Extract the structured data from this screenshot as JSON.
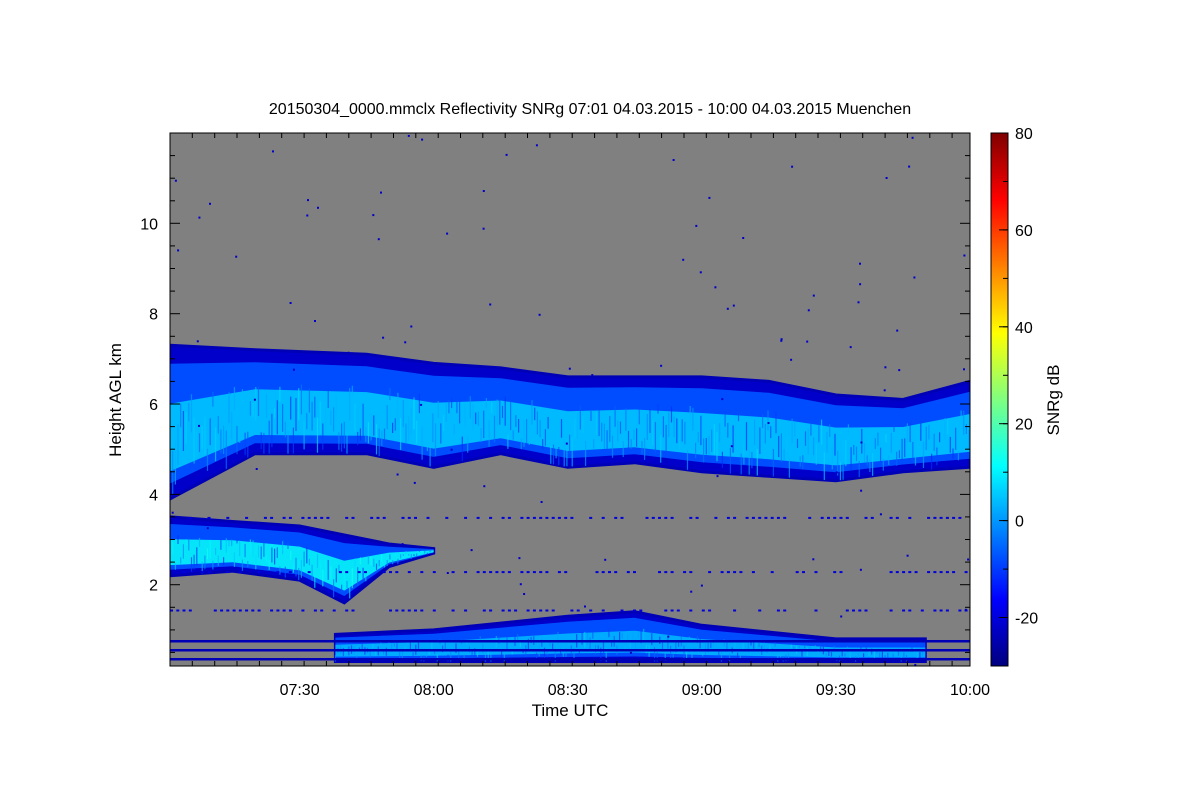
{
  "chart_data": {
    "type": "heatmap",
    "title": "20150304_0000.mmclx Reflectivity SNRg   07:01 04.03.2015 - 10:00 04.03.2015 Muenchen",
    "xlabel": "Time UTC",
    "ylabel": "Height AGL km",
    "xlim": [
      "07:01",
      "10:00"
    ],
    "ylim": [
      0.2,
      12
    ],
    "x_ticks": [
      "07:30",
      "08:00",
      "08:30",
      "09:00",
      "09:30",
      "10:00"
    ],
    "y_ticks": [
      2,
      4,
      6,
      8,
      10
    ],
    "no_signal_color": "#808080",
    "colorbar": {
      "label": "SNRg dB",
      "range": [
        -30,
        80
      ],
      "ticks": [
        -20,
        0,
        20,
        40,
        60,
        80
      ],
      "colormap": "jet"
    },
    "features": [
      {
        "layer": "upper cloud",
        "time": [
          "07:01",
          "07:20",
          "07:45",
          "08:00",
          "08:15",
          "08:30",
          "08:45",
          "09:00",
          "09:15",
          "09:30",
          "09:45",
          "10:00"
        ],
        "base_km": [
          3.9,
          4.9,
          4.9,
          4.6,
          4.9,
          4.6,
          4.7,
          4.5,
          4.4,
          4.3,
          4.5,
          4.6
        ],
        "top_km": [
          7.3,
          7.2,
          7.1,
          6.9,
          6.8,
          6.6,
          6.6,
          6.6,
          6.5,
          6.2,
          6.1,
          6.5
        ],
        "max_snr_db": 12
      },
      {
        "layer": "mid cloud",
        "time": [
          "07:01",
          "07:15",
          "07:30",
          "07:40",
          "07:50",
          "08:00"
        ],
        "base_km": [
          2.2,
          2.3,
          2.1,
          1.6,
          2.4,
          2.7
        ],
        "top_km": [
          3.5,
          3.4,
          3.3,
          3.1,
          2.9,
          2.8
        ],
        "max_snr_db": 18
      },
      {
        "layer": "boundary layer echoes",
        "time": [
          "07:38",
          "08:00",
          "08:30",
          "08:45",
          "09:00",
          "09:30",
          "09:50"
        ],
        "base_km": [
          0.3,
          0.3,
          0.3,
          0.3,
          0.3,
          0.3,
          0.3
        ],
        "top_km": [
          0.9,
          1.0,
          1.3,
          1.4,
          1.1,
          0.8,
          0.8
        ],
        "max_snr_db": 10
      }
    ]
  }
}
